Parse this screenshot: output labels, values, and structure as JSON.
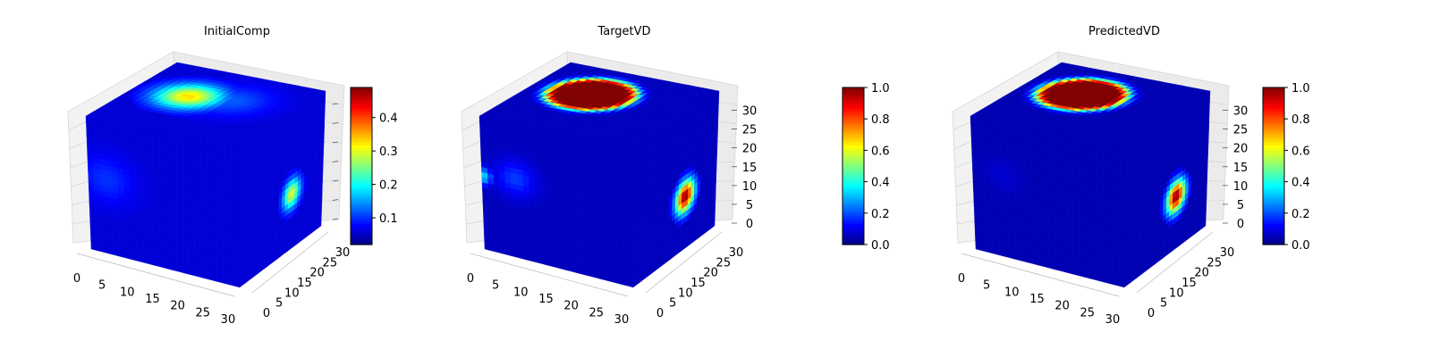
{
  "chart_data": [
    {
      "type": "heatmap",
      "title": "InitialComp",
      "xlabel": "",
      "ylabel": "",
      "zlabel": "",
      "x_ticks": [
        "0",
        "5",
        "10",
        "15",
        "20",
        "25",
        "30"
      ],
      "y_ticks": [
        "0",
        "5",
        "10",
        "15",
        "20",
        "25",
        "30"
      ],
      "z_ticks": [],
      "xlim": [
        0,
        32
      ],
      "ylim": [
        0,
        32
      ],
      "zlim": [
        0,
        32
      ],
      "colormap": "jet",
      "colorbar": {
        "min": 0.02,
        "max": 0.49,
        "ticks": [
          "0.1",
          "0.2",
          "0.3",
          "0.4"
        ],
        "tick_values": [
          0.1,
          0.2,
          0.3,
          0.4
        ]
      },
      "hotspots": [
        {
          "face": "top",
          "u": 0.35,
          "v": 0.55,
          "radius": 0.25,
          "value": 0.33
        },
        {
          "face": "top",
          "u": 0.6,
          "v": 0.6,
          "radius": 0.3,
          "value": 0.12
        },
        {
          "face": "right",
          "u": 0.62,
          "v": 0.6,
          "radius": 0.13,
          "value": 0.3
        },
        {
          "face": "front",
          "u": 0.12,
          "v": 0.45,
          "radius": 0.22,
          "value": 0.1
        }
      ],
      "base_value": 0.06
    },
    {
      "type": "heatmap",
      "title": "TargetVD",
      "xlabel": "",
      "ylabel": "",
      "zlabel": "",
      "x_ticks": [
        "0",
        "5",
        "10",
        "15",
        "20",
        "25",
        "30"
      ],
      "y_ticks": [
        "0",
        "5",
        "10",
        "15",
        "20",
        "25",
        "30"
      ],
      "z_ticks": [
        "0",
        "5",
        "10",
        "15",
        "20",
        "25",
        "30"
      ],
      "xlim": [
        0,
        32
      ],
      "ylim": [
        0,
        32
      ],
      "zlim": [
        0,
        32
      ],
      "colormap": "jet",
      "colorbar": {
        "min": 0.0,
        "max": 1.0,
        "ticks": [
          "0.0",
          "0.2",
          "0.4",
          "0.6",
          "0.8",
          "1.0"
        ],
        "tick_values": [
          0,
          0.2,
          0.4,
          0.6,
          0.8,
          1.0
        ]
      },
      "hotspots": [
        {
          "face": "top",
          "u": 0.38,
          "v": 0.6,
          "radius": 0.26,
          "value": 1.0,
          "ring": true
        },
        {
          "face": "right",
          "u": 0.62,
          "v": 0.62,
          "radius": 0.14,
          "value": 1.0
        },
        {
          "face": "front",
          "u": 0.22,
          "v": 0.42,
          "radius": 0.16,
          "value": 0.18
        },
        {
          "face": "front",
          "u": 0.0,
          "v": 0.45,
          "radius": 0.08,
          "value": 0.35
        }
      ],
      "base_value": 0.06
    },
    {
      "type": "heatmap",
      "title": "PredictedVD",
      "xlabel": "",
      "ylabel": "",
      "zlabel": "",
      "x_ticks": [
        "0",
        "5",
        "10",
        "15",
        "20",
        "25",
        "30"
      ],
      "y_ticks": [
        "0",
        "5",
        "10",
        "15",
        "20",
        "25",
        "30"
      ],
      "z_ticks": [
        "0",
        "5",
        "10",
        "15",
        "20",
        "25",
        "30"
      ],
      "xlim": [
        0,
        32
      ],
      "ylim": [
        0,
        32
      ],
      "zlim": [
        0,
        32
      ],
      "colormap": "jet",
      "colorbar": {
        "min": 0.0,
        "max": 1.0,
        "ticks": [
          "0.0",
          "0.2",
          "0.4",
          "0.6",
          "0.8",
          "1.0"
        ],
        "tick_values": [
          0,
          0.2,
          0.4,
          0.6,
          0.8,
          1.0
        ]
      },
      "hotspots": [
        {
          "face": "top",
          "u": 0.38,
          "v": 0.6,
          "radius": 0.26,
          "value": 1.0,
          "ring": true
        },
        {
          "face": "right",
          "u": 0.62,
          "v": 0.62,
          "radius": 0.14,
          "value": 1.0
        },
        {
          "face": "front",
          "u": 0.2,
          "v": 0.4,
          "radius": 0.15,
          "value": 0.08
        }
      ],
      "base_value": 0.05
    }
  ]
}
